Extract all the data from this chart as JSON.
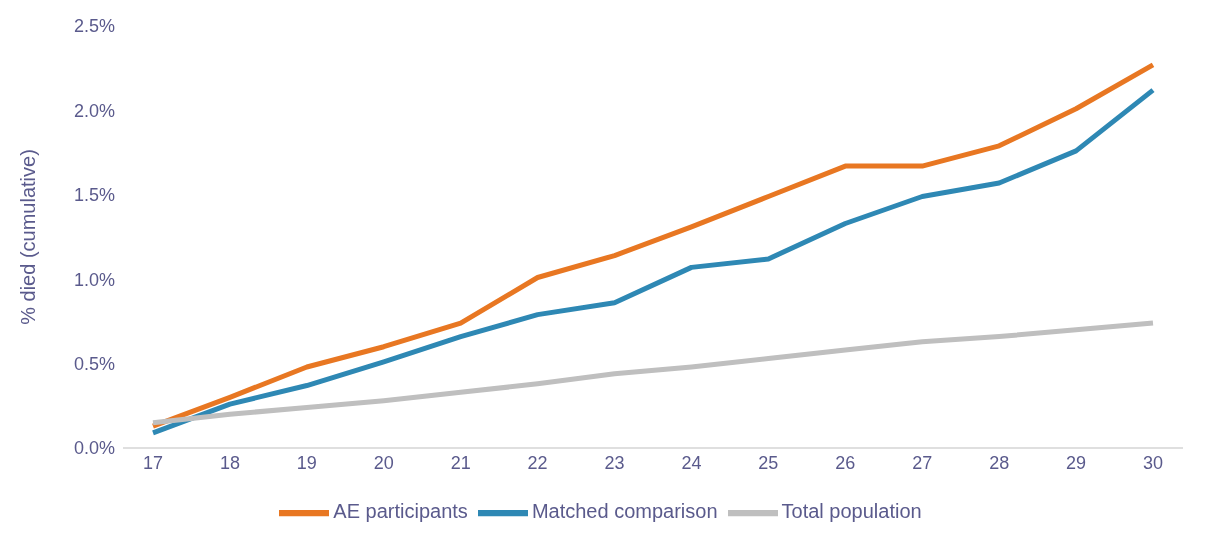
{
  "chart_data": {
    "type": "line",
    "ylabel": "% died (cumulative)",
    "categories": [
      "17",
      "18",
      "19",
      "20",
      "21",
      "22",
      "23",
      "24",
      "25",
      "26",
      "27",
      "28",
      "29",
      "30"
    ],
    "series": [
      {
        "name": "AE participants",
        "color": "#e87722",
        "values": [
          0.13,
          0.3,
          0.48,
          0.6,
          0.74,
          1.01,
          1.14,
          1.31,
          1.49,
          1.67,
          1.67,
          1.79,
          2.01,
          2.27
        ]
      },
      {
        "name": "Matched comparison",
        "color": "#2e88b4",
        "values": [
          0.09,
          0.26,
          0.37,
          0.51,
          0.66,
          0.79,
          0.86,
          1.07,
          1.12,
          1.33,
          1.49,
          1.57,
          1.76,
          2.12
        ]
      },
      {
        "name": "Total population",
        "color": "#bfbfbf",
        "values": [
          0.15,
          0.2,
          0.24,
          0.28,
          0.33,
          0.38,
          0.44,
          0.48,
          0.53,
          0.58,
          0.63,
          0.66,
          0.7,
          0.74
        ]
      }
    ],
    "ylim": [
      0,
      2.5
    ],
    "yticks": [
      {
        "value": 0,
        "label": "0.0%"
      },
      {
        "value": 0.5,
        "label": "0.5%"
      },
      {
        "value": 1,
        "label": "1.0%"
      },
      {
        "value": 1.5,
        "label": "1.5%"
      },
      {
        "value": 2,
        "label": "2.0%"
      },
      {
        "value": 2.5,
        "label": "2.5%"
      }
    ],
    "grid": false,
    "legend": "bottom",
    "marker": "none",
    "line_style": "solid"
  }
}
